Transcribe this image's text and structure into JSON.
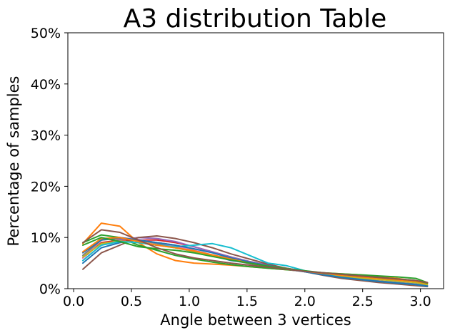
{
  "chart_data": {
    "type": "line",
    "title": "A3 distribution Table",
    "xlabel": "Angle between 3 vertices",
    "ylabel": "Percentage of samples",
    "xlim": [
      -0.05,
      3.2
    ],
    "ylim": [
      0,
      0.5
    ],
    "grid": false,
    "legend": "none",
    "x_ticks": [
      0.0,
      0.5,
      1.0,
      1.5,
      2.0,
      2.5,
      3.0
    ],
    "x_tick_labels": [
      "0.0",
      "0.5",
      "1.0",
      "1.5",
      "2.0",
      "2.5",
      "3.0"
    ],
    "y_ticks": [
      0,
      0.1,
      0.2,
      0.3,
      0.4,
      0.5
    ],
    "y_tick_labels": [
      "0%",
      "10%",
      "20%",
      "30%",
      "40%",
      "50%"
    ],
    "x": [
      0.08,
      0.24,
      0.4,
      0.56,
      0.72,
      0.88,
      1.04,
      1.2,
      1.36,
      1.52,
      1.68,
      1.84,
      2.0,
      2.16,
      2.32,
      2.48,
      2.64,
      2.8,
      2.96,
      3.06
    ],
    "series": [
      {
        "color": "#1f77b4",
        "values": [
          0.05,
          0.08,
          0.09,
          0.095,
          0.09,
          0.085,
          0.075,
          0.065,
          0.055,
          0.05,
          0.045,
          0.04,
          0.034,
          0.028,
          0.022,
          0.017,
          0.013,
          0.01,
          0.007,
          0.005
        ]
      },
      {
        "color": "#ff7f0e",
        "values": [
          0.088,
          0.128,
          0.122,
          0.09,
          0.068,
          0.055,
          0.05,
          0.048,
          0.046,
          0.043,
          0.04,
          0.037,
          0.034,
          0.031,
          0.029,
          0.027,
          0.024,
          0.02,
          0.015,
          0.01
        ]
      },
      {
        "color": "#2ca02c",
        "values": [
          0.09,
          0.105,
          0.1,
          0.085,
          0.075,
          0.065,
          0.058,
          0.052,
          0.047,
          0.043,
          0.04,
          0.037,
          0.034,
          0.031,
          0.029,
          0.027,
          0.025,
          0.023,
          0.02,
          0.012
        ]
      },
      {
        "color": "#d62728",
        "values": [
          0.06,
          0.09,
          0.095,
          0.095,
          0.095,
          0.09,
          0.082,
          0.072,
          0.062,
          0.053,
          0.046,
          0.04,
          0.034,
          0.029,
          0.024,
          0.019,
          0.015,
          0.011,
          0.008,
          0.005
        ]
      },
      {
        "color": "#9467bd",
        "values": [
          0.055,
          0.085,
          0.095,
          0.1,
          0.098,
          0.092,
          0.082,
          0.072,
          0.062,
          0.053,
          0.046,
          0.04,
          0.034,
          0.028,
          0.022,
          0.017,
          0.013,
          0.01,
          0.007,
          0.005
        ]
      },
      {
        "color": "#8c564b",
        "values": [
          0.038,
          0.07,
          0.085,
          0.1,
          0.103,
          0.098,
          0.09,
          0.08,
          0.068,
          0.058,
          0.048,
          0.04,
          0.033,
          0.026,
          0.02,
          0.016,
          0.012,
          0.009,
          0.006,
          0.004
        ]
      },
      {
        "color": "#e377c2",
        "values": [
          0.06,
          0.095,
          0.1,
          0.096,
          0.09,
          0.083,
          0.075,
          0.066,
          0.058,
          0.05,
          0.044,
          0.038,
          0.033,
          0.028,
          0.023,
          0.019,
          0.015,
          0.012,
          0.009,
          0.006
        ]
      },
      {
        "color": "#7f7f7f",
        "values": [
          0.065,
          0.095,
          0.098,
          0.095,
          0.088,
          0.08,
          0.072,
          0.064,
          0.056,
          0.049,
          0.043,
          0.038,
          0.033,
          0.028,
          0.023,
          0.019,
          0.015,
          0.012,
          0.009,
          0.006
        ]
      },
      {
        "color": "#bcbd22",
        "values": [
          0.062,
          0.088,
          0.093,
          0.09,
          0.085,
          0.08,
          0.073,
          0.065,
          0.057,
          0.05,
          0.044,
          0.039,
          0.034,
          0.029,
          0.025,
          0.021,
          0.018,
          0.015,
          0.012,
          0.008
        ]
      },
      {
        "color": "#17becf",
        "values": [
          0.055,
          0.085,
          0.092,
          0.09,
          0.085,
          0.082,
          0.085,
          0.088,
          0.08,
          0.065,
          0.05,
          0.045,
          0.035,
          0.028,
          0.022,
          0.018,
          0.014,
          0.011,
          0.008,
          0.005
        ]
      },
      {
        "color": "#1f77b4",
        "values": [
          0.07,
          0.095,
          0.1,
          0.095,
          0.09,
          0.085,
          0.078,
          0.07,
          0.06,
          0.052,
          0.045,
          0.039,
          0.033,
          0.027,
          0.022,
          0.018,
          0.014,
          0.011,
          0.008,
          0.005
        ]
      },
      {
        "color": "#ff7f0e",
        "values": [
          0.072,
          0.098,
          0.1,
          0.092,
          0.085,
          0.08,
          0.074,
          0.066,
          0.058,
          0.05,
          0.044,
          0.039,
          0.034,
          0.03,
          0.026,
          0.023,
          0.02,
          0.017,
          0.014,
          0.01
        ]
      },
      {
        "color": "#2ca02c",
        "values": [
          0.085,
          0.1,
          0.092,
          0.082,
          0.078,
          0.075,
          0.07,
          0.063,
          0.056,
          0.05,
          0.044,
          0.039,
          0.035,
          0.031,
          0.028,
          0.025,
          0.022,
          0.019,
          0.016,
          0.011
        ]
      },
      {
        "color": "#8c564b",
        "values": [
          0.09,
          0.115,
          0.11,
          0.095,
          0.08,
          0.068,
          0.06,
          0.055,
          0.05,
          0.046,
          0.042,
          0.038,
          0.034,
          0.031,
          0.028,
          0.025,
          0.022,
          0.019,
          0.016,
          0.012
        ]
      }
    ]
  }
}
